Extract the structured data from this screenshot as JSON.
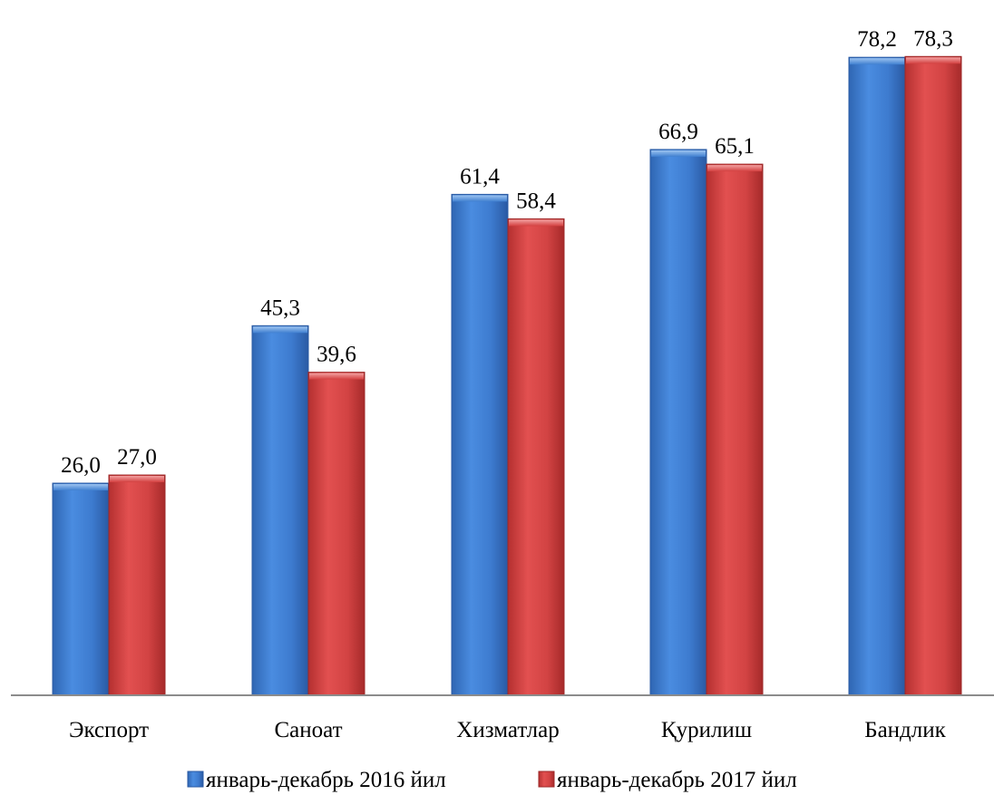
{
  "chart_data": {
    "type": "bar",
    "title": "",
    "xlabel": "",
    "ylabel": "",
    "ylim": [
      0,
      80
    ],
    "grid": false,
    "legend_position": "bottom",
    "categories": [
      "Экспорт",
      "Саноат",
      "Хизматлар",
      "Қурилиш",
      "Бандлик"
    ],
    "series": [
      {
        "name": "январь-декабрь 2016 йил",
        "color": "#3f7fd0",
        "values": [
          26.0,
          45.3,
          61.4,
          66.9,
          78.2
        ],
        "labels": [
          "26,0",
          "45,3",
          "61,4",
          "66,9",
          "78,2"
        ]
      },
      {
        "name": "январь-декабрь 2017 йил",
        "color": "#d33f3f",
        "values": [
          27.0,
          39.6,
          58.4,
          65.1,
          78.3
        ],
        "labels": [
          "27,0",
          "39,6",
          "58,4",
          "65,1",
          "78,3"
        ]
      }
    ]
  }
}
